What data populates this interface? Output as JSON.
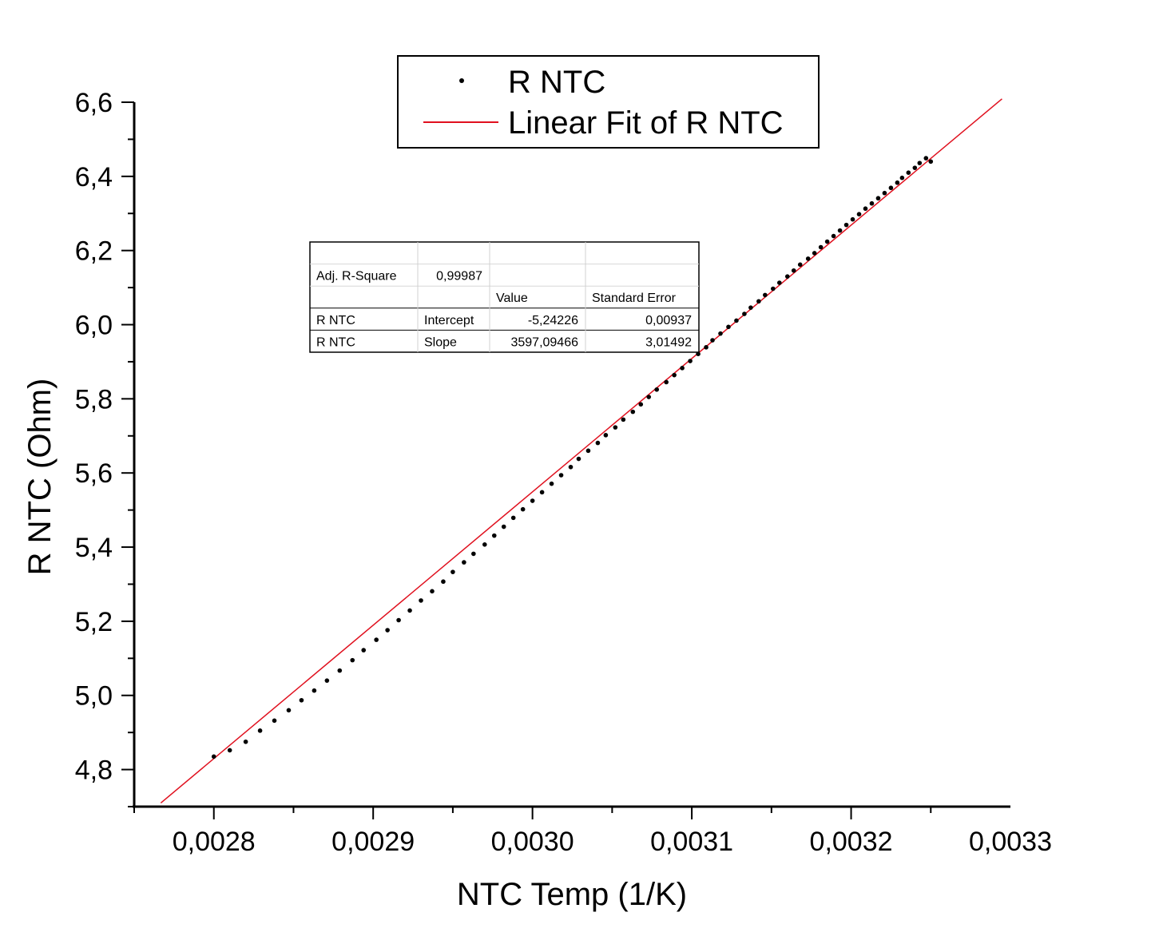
{
  "chart_data": {
    "type": "scatter",
    "xlabel": "NTC Temp (1/K)",
    "ylabel": "R NTC (Ohm)",
    "xlim": [
      0.00275,
      0.0033
    ],
    "ylim": [
      4.7,
      6.6
    ],
    "x_ticks": [
      "0,0028",
      "0,0029",
      "0,0030",
      "0,0031",
      "0,0032",
      "0,0033"
    ],
    "y_ticks": [
      "4,8",
      "5,0",
      "5,2",
      "5,4",
      "5,6",
      "5,8",
      "6,0",
      "6,2",
      "6,4",
      "6,6"
    ],
    "legend": {
      "placement": "top-center",
      "entries": [
        "R NTC",
        "Linear Fit of R NTC"
      ]
    },
    "colors": {
      "data": "#000000",
      "fit": "#e0101e"
    },
    "series": [
      {
        "name": "R NTC",
        "x": [
          0.0028,
          0.00281,
          0.00282,
          0.002829,
          0.002838,
          0.002847,
          0.002855,
          0.002863,
          0.002871,
          0.002879,
          0.002887,
          0.002894,
          0.002902,
          0.002909,
          0.002916,
          0.002923,
          0.00293,
          0.002937,
          0.002944,
          0.00295,
          0.002957,
          0.002963,
          0.00297,
          0.002976,
          0.002982,
          0.002988,
          0.002994,
          0.003,
          0.003006,
          0.003012,
          0.003018,
          0.003024,
          0.003029,
          0.003035,
          0.003041,
          0.003046,
          0.003052,
          0.003057,
          0.003063,
          0.003068,
          0.003073,
          0.003078,
          0.003084,
          0.003089,
          0.003094,
          0.003099,
          0.003104,
          0.003109,
          0.003113,
          0.003118,
          0.003123,
          0.003128,
          0.003133,
          0.003137,
          0.003142,
          0.003146,
          0.003151,
          0.003155,
          0.00316,
          0.003164,
          0.003168,
          0.003173,
          0.003177,
          0.003181,
          0.003185,
          0.003189,
          0.003193,
          0.003197,
          0.003201,
          0.003205,
          0.003209,
          0.003213,
          0.003217,
          0.003221,
          0.003225,
          0.003229,
          0.003232,
          0.003236,
          0.00324,
          0.003243,
          0.003247,
          0.00325
        ],
        "y": [
          4.835,
          4.852,
          4.875,
          4.905,
          4.932,
          4.96,
          4.987,
          5.013,
          5.04,
          5.067,
          5.095,
          5.122,
          5.15,
          5.176,
          5.203,
          5.229,
          5.256,
          5.281,
          5.307,
          5.333,
          5.359,
          5.382,
          5.407,
          5.431,
          5.455,
          5.479,
          5.502,
          5.525,
          5.548,
          5.571,
          5.594,
          5.616,
          5.638,
          5.66,
          5.681,
          5.702,
          5.723,
          5.744,
          5.765,
          5.785,
          5.805,
          5.825,
          5.845,
          5.864,
          5.883,
          5.902,
          5.921,
          5.939,
          5.958,
          5.976,
          5.994,
          6.011,
          6.029,
          6.046,
          6.063,
          6.08,
          6.097,
          6.113,
          6.13,
          6.146,
          6.162,
          6.178,
          6.193,
          6.209,
          6.224,
          6.239,
          6.254,
          6.269,
          6.284,
          6.298,
          6.313,
          6.327,
          6.341,
          6.355,
          6.369,
          6.383,
          6.396,
          6.41,
          6.423,
          6.436,
          6.449,
          6.44
        ]
      },
      {
        "name": "Linear Fit of R NTC",
        "type": "line",
        "intercept": -5.24226,
        "slope": 3597.09466,
        "x": [
          0.0027667,
          0.0032947
        ]
      }
    ],
    "stats_table": {
      "rows": [
        [
          "",
          "",
          "",
          ""
        ],
        [
          "Adj. R-Square",
          "0,99987",
          "",
          ""
        ],
        [
          "",
          "",
          "Value",
          "Standard Error"
        ],
        [
          "R NTC",
          "Intercept",
          "-5,24226",
          "0,00937"
        ],
        [
          "R NTC",
          "Slope",
          "3597,09466",
          "3,01492"
        ]
      ]
    }
  }
}
